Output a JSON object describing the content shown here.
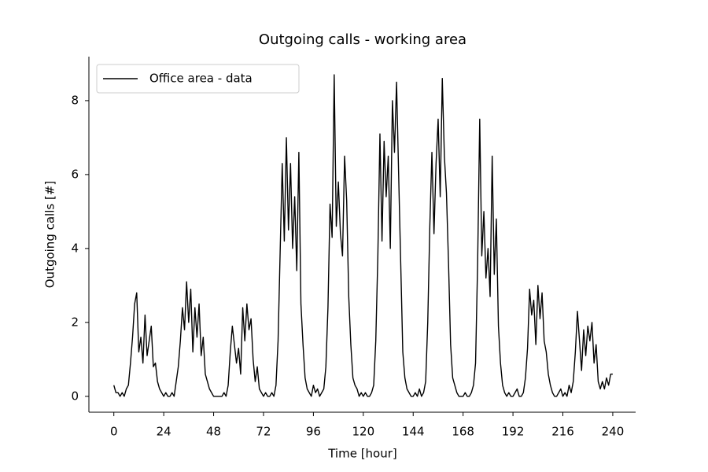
{
  "chart_data": {
    "type": "line",
    "title": "Outgoing calls - working area",
    "xlabel": "Time [hour]",
    "ylabel": "Outgoing calls [#]",
    "x": [
      0,
      1,
      2,
      3,
      4,
      5,
      6,
      7,
      8,
      9,
      10,
      11,
      12,
      13,
      14,
      15,
      16,
      17,
      18,
      19,
      20,
      21,
      22,
      23,
      24,
      25,
      26,
      27,
      28,
      29,
      30,
      31,
      32,
      33,
      34,
      35,
      36,
      37,
      38,
      39,
      40,
      41,
      42,
      43,
      44,
      45,
      46,
      47,
      48,
      49,
      50,
      51,
      52,
      53,
      54,
      55,
      56,
      57,
      58,
      59,
      60,
      61,
      62,
      63,
      64,
      65,
      66,
      67,
      68,
      69,
      70,
      71,
      72,
      73,
      74,
      75,
      76,
      77,
      78,
      79,
      80,
      81,
      82,
      83,
      84,
      85,
      86,
      87,
      88,
      89,
      90,
      91,
      92,
      93,
      94,
      95,
      96,
      97,
      98,
      99,
      100,
      101,
      102,
      103,
      104,
      105,
      106,
      107,
      108,
      109,
      110,
      111,
      112,
      113,
      114,
      115,
      116,
      117,
      118,
      119,
      120,
      121,
      122,
      123,
      124,
      125,
      126,
      127,
      128,
      129,
      130,
      131,
      132,
      133,
      134,
      135,
      136,
      137,
      138,
      139,
      140,
      141,
      142,
      143,
      144,
      145,
      146,
      147,
      148,
      149,
      150,
      151,
      152,
      153,
      154,
      155,
      156,
      157,
      158,
      159,
      160,
      161,
      162,
      163,
      164,
      165,
      166,
      167,
      168,
      169,
      170,
      171,
      172,
      173,
      174,
      175,
      176,
      177,
      178,
      179,
      180,
      181,
      182,
      183,
      184,
      185,
      186,
      187,
      188,
      189,
      190,
      191,
      192,
      193,
      194,
      195,
      196,
      197,
      198,
      199,
      200,
      201,
      202,
      203,
      204,
      205,
      206,
      207,
      208,
      209,
      210,
      211,
      212,
      213,
      214,
      215,
      216,
      217,
      218,
      219,
      220,
      221,
      222,
      223,
      224,
      225,
      226,
      227,
      228,
      229,
      230,
      231,
      232,
      233,
      234,
      235,
      236,
      237,
      238,
      239,
      240
    ],
    "series": [
      {
        "name": "Office area - data",
        "color": "#000000",
        "values": [
          0.3,
          0.1,
          0.1,
          0.0,
          0.1,
          0.0,
          0.2,
          0.3,
          0.9,
          1.6,
          2.5,
          2.8,
          1.2,
          1.6,
          0.9,
          2.2,
          1.1,
          1.5,
          1.9,
          0.8,
          0.9,
          0.4,
          0.2,
          0.1,
          0.0,
          0.1,
          0.0,
          0.0,
          0.1,
          0.0,
          0.4,
          0.8,
          1.5,
          2.4,
          1.8,
          3.1,
          2.0,
          2.9,
          1.2,
          2.4,
          1.6,
          2.5,
          1.1,
          1.6,
          0.6,
          0.4,
          0.2,
          0.1,
          0.0,
          0.0,
          0.0,
          0.0,
          0.0,
          0.1,
          0.0,
          0.3,
          1.2,
          1.9,
          1.4,
          0.9,
          1.3,
          0.6,
          2.4,
          1.5,
          2.5,
          1.8,
          2.1,
          1.0,
          0.4,
          0.8,
          0.2,
          0.1,
          0.0,
          0.1,
          0.0,
          0.0,
          0.1,
          0.0,
          0.3,
          1.5,
          3.9,
          6.3,
          4.2,
          7.0,
          4.5,
          6.3,
          4.0,
          5.4,
          3.4,
          6.6,
          2.5,
          1.4,
          0.5,
          0.2,
          0.1,
          0.0,
          0.3,
          0.1,
          0.2,
          0.0,
          0.1,
          0.2,
          0.8,
          2.4,
          5.2,
          4.3,
          8.7,
          4.6,
          5.8,
          4.4,
          3.8,
          6.5,
          5.3,
          2.7,
          1.4,
          0.5,
          0.3,
          0.2,
          0.0,
          0.1,
          0.0,
          0.1,
          0.0,
          0.0,
          0.1,
          0.3,
          1.5,
          3.8,
          7.1,
          4.2,
          6.9,
          5.4,
          6.5,
          4.0,
          8.0,
          6.6,
          8.5,
          6.0,
          3.6,
          1.2,
          0.5,
          0.2,
          0.1,
          0.0,
          0.0,
          0.1,
          0.0,
          0.2,
          0.0,
          0.1,
          0.4,
          2.0,
          4.6,
          6.6,
          4.4,
          6.3,
          7.5,
          5.4,
          8.6,
          6.5,
          5.5,
          3.6,
          1.4,
          0.5,
          0.3,
          0.1,
          0.0,
          0.0,
          0.0,
          0.1,
          0.0,
          0.0,
          0.1,
          0.3,
          0.9,
          3.6,
          7.5,
          3.8,
          5.0,
          3.2,
          4.0,
          2.7,
          6.5,
          3.3,
          4.8,
          1.9,
          0.9,
          0.3,
          0.1,
          0.0,
          0.1,
          0.0,
          0.0,
          0.1,
          0.2,
          0.0,
          0.0,
          0.1,
          0.5,
          1.3,
          2.9,
          2.2,
          2.6,
          1.4,
          3.0,
          2.1,
          2.8,
          1.5,
          1.2,
          0.6,
          0.3,
          0.1,
          0.0,
          0.0,
          0.1,
          0.2,
          0.0,
          0.1,
          0.0,
          0.3,
          0.1,
          0.4,
          1.2,
          2.3,
          1.5,
          0.7,
          1.8,
          1.1,
          1.9,
          1.5,
          2.0,
          0.9,
          1.4,
          0.4,
          0.2,
          0.4,
          0.2,
          0.5,
          0.3,
          0.6,
          0.6
        ]
      }
    ],
    "xlim": [
      -12,
      251
    ],
    "ylim": [
      -0.43,
      9.19
    ],
    "xticks": [
      0,
      24,
      48,
      72,
      96,
      120,
      144,
      168,
      192,
      216,
      240
    ],
    "yticks": [
      0,
      2,
      4,
      6,
      8
    ],
    "grid": false,
    "legend": "upper left"
  }
}
